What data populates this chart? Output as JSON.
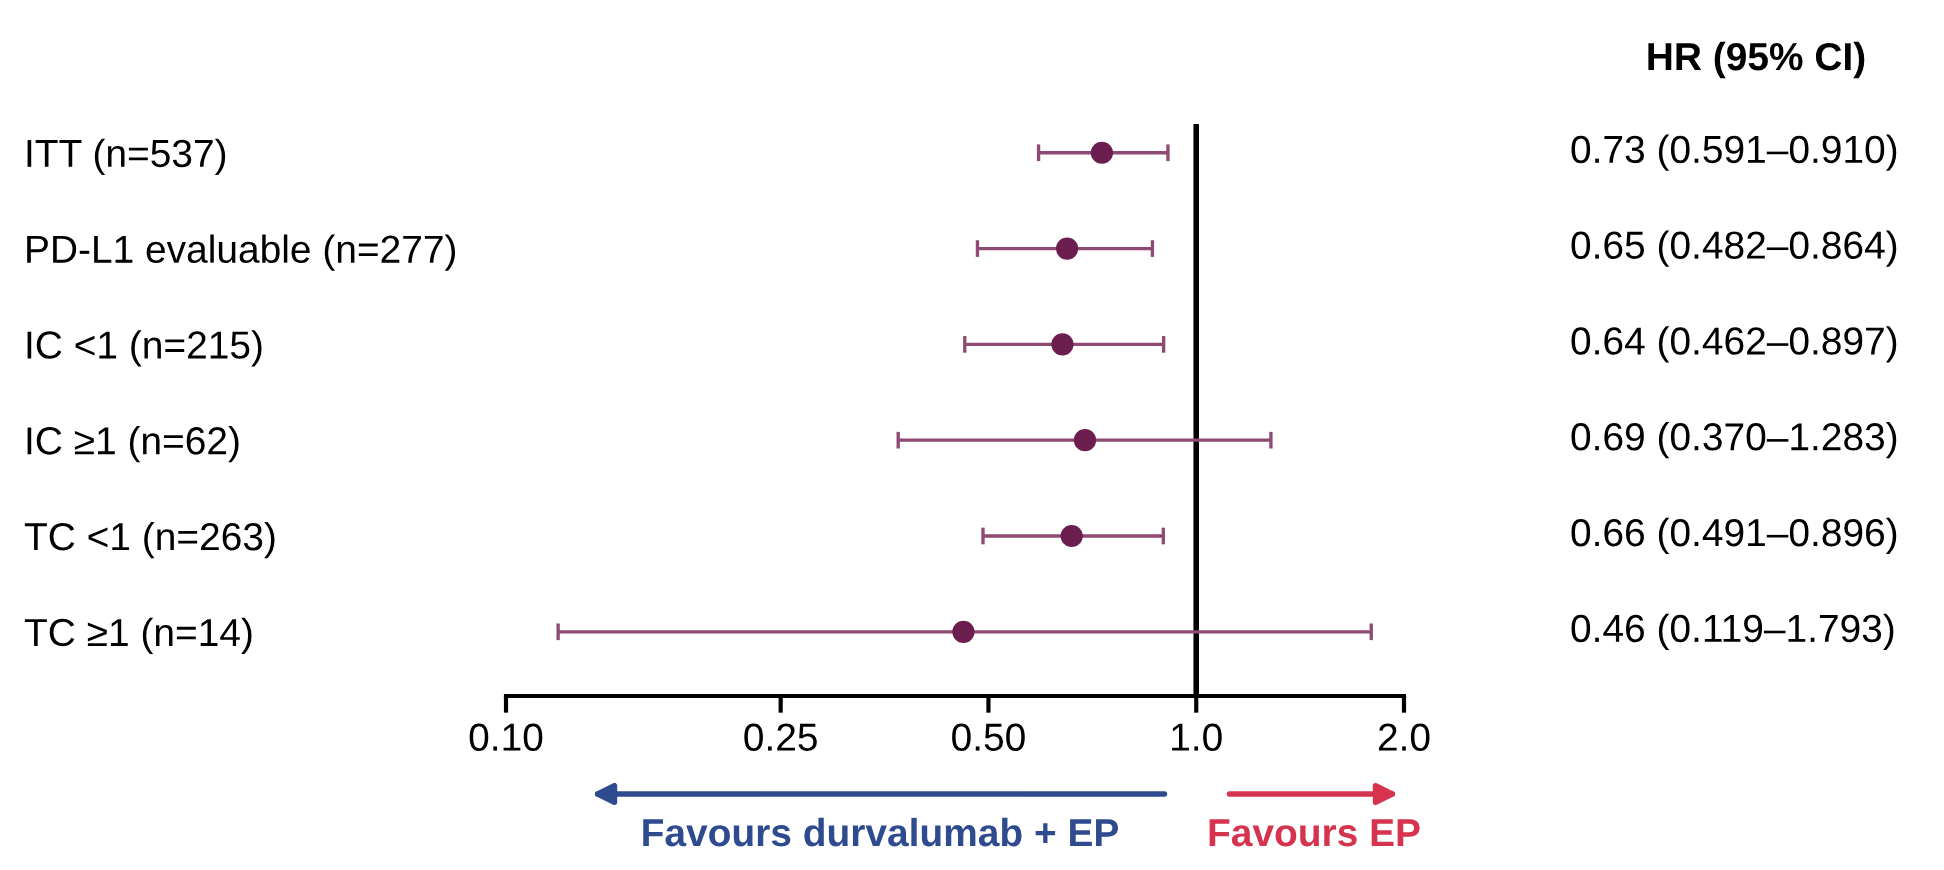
{
  "chart_data": {
    "type": "scatter",
    "orientation": "horizontal",
    "categories": [
      "ITT (n=537)",
      "PD-L1 evaluable (n=277)",
      "IC <1 (n=215)",
      "IC ≥1 (n=62)",
      "TC <1 (n=263)",
      "TC ≥1 (n=14)"
    ],
    "values": [
      0.73,
      0.65,
      0.64,
      0.69,
      0.66,
      0.46
    ],
    "errors": [
      [
        0.591,
        0.91
      ],
      [
        0.482,
        0.864
      ],
      [
        0.462,
        0.897
      ],
      [
        0.37,
        1.283
      ],
      [
        0.491,
        0.896
      ],
      [
        0.119,
        1.793
      ]
    ],
    "value_labels": [
      "0.73 (0.591–0.910)",
      "0.65 (0.482–0.864)",
      "0.64 (0.462–0.897)",
      "0.69 (0.370–1.283)",
      "0.66 (0.491–0.896)",
      "0.46 (0.119–1.793)"
    ],
    "color": "#6b1e4f",
    "marker": "circle",
    "log": "x",
    "xlim": [
      0.1,
      2.0
    ],
    "xticks": [
      {
        "value": 0.1,
        "label": "0.10"
      },
      {
        "value": 0.25,
        "label": "0.25"
      },
      {
        "value": 0.5,
        "label": "0.50"
      },
      {
        "value": 1.0,
        "label": "1.0"
      },
      {
        "value": 2.0,
        "label": "2.0"
      }
    ],
    "ref_lines": [
      {
        "axis": "x",
        "value": 1.0,
        "color": "#000000"
      }
    ],
    "annotations": [
      "HR (95% CI)",
      "Favours durvalumab + EP",
      "Favours EP"
    ],
    "grid": false,
    "legend": false
  }
}
